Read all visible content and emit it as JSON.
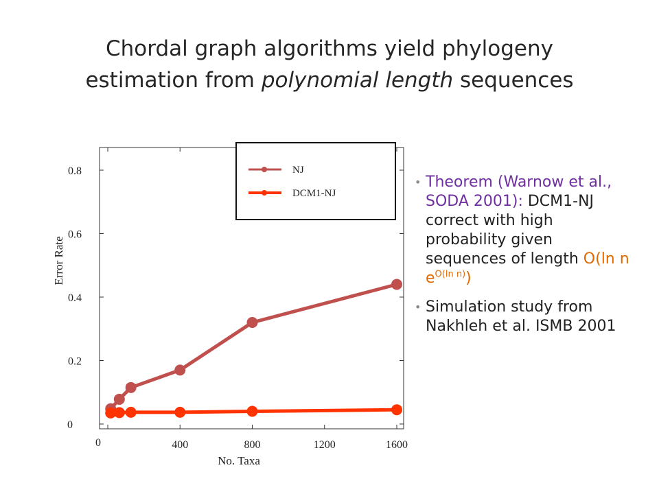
{
  "slide": {
    "title_line1": "Chordal graph algorithms yield phylogeny",
    "title_line2_pre": "estimation from ",
    "title_line2_em": "polynomial length",
    "title_line2_post": " sequences"
  },
  "bullets": [
    {
      "accent": "Theorem (Warnow et al., SODA 2001):",
      "text": " DCM1-NJ correct with high probability given sequences of length ",
      "formula_base": "O(ln n e",
      "formula_sup": "O(ln n)",
      "formula_close": ")"
    },
    {
      "text": "Simulation study from Nakhleh et al. ISMB 2001"
    }
  ],
  "colors": {
    "nj": "#c0504d",
    "dcm1nj": "#ff3300",
    "accent": "#6f2fa0",
    "formula": "#e06a00"
  },
  "chart_data": {
    "type": "line",
    "xlabel": "No. Taxa",
    "ylabel": "Error Rate",
    "xlim": [
      0,
      1600
    ],
    "ylim": [
      0,
      0.8
    ],
    "x_ticks": [
      0,
      400,
      800,
      1200,
      1600
    ],
    "y_ticks": [
      0,
      0.2,
      0.4,
      0.6,
      0.8
    ],
    "legend_position": "top-right",
    "series": [
      {
        "name": "NJ",
        "color": "#c0504d",
        "x": [
          16,
          64,
          128,
          400,
          800,
          1600
        ],
        "y": [
          0.048,
          0.078,
          0.115,
          0.17,
          0.32,
          0.44
        ]
      },
      {
        "name": "DCM1-NJ",
        "color": "#ff3300",
        "x": [
          16,
          64,
          128,
          400,
          800,
          1600
        ],
        "y": [
          0.035,
          0.036,
          0.037,
          0.037,
          0.04,
          0.045
        ]
      }
    ]
  }
}
